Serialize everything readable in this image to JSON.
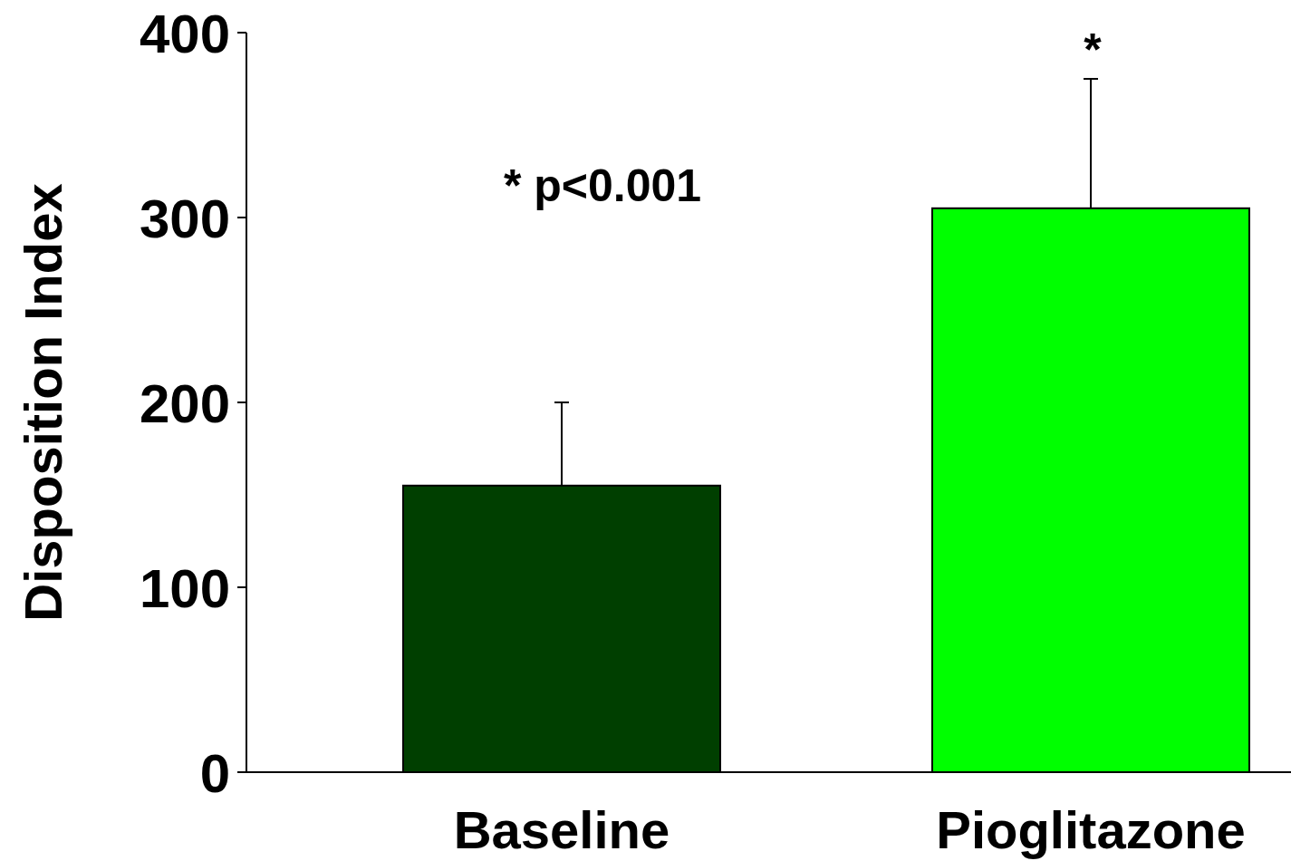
{
  "chart_data": {
    "type": "bar",
    "ylabel": "Disposition Index",
    "categories": [
      "Baseline",
      "Pioglitazone"
    ],
    "values": [
      155,
      305
    ],
    "colors": [
      "#003f00",
      "#00ff00"
    ],
    "errors": [
      [
        155,
        200
      ],
      [
        305,
        375
      ]
    ],
    "ylim": [
      0,
      400
    ],
    "yticks": [
      0,
      100,
      200,
      300,
      400
    ],
    "grid": false,
    "annotations": [
      "* p<0.001",
      "*"
    ]
  }
}
